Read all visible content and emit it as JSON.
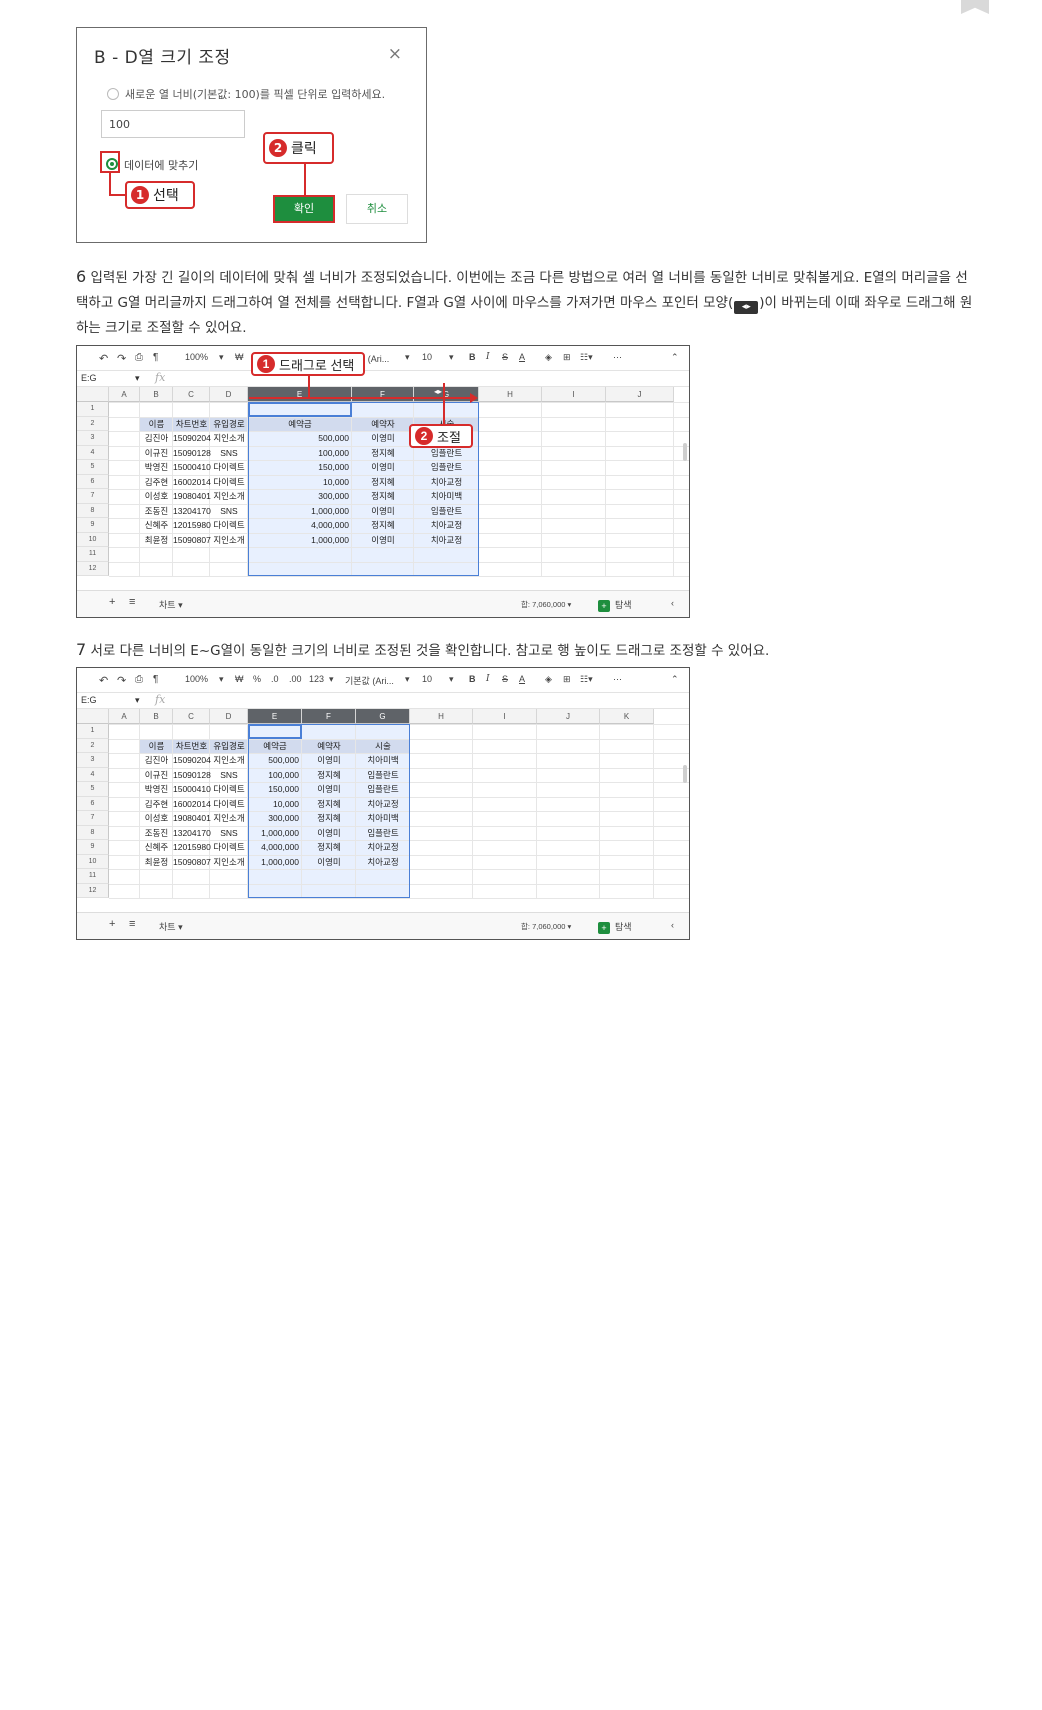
{
  "dialog": {
    "title": "B - D열 크기 조정",
    "close": "×",
    "option1": "새로운 열 너비(기본값: 100)를 픽셀 단위로 입력하세요.",
    "input_value": "100",
    "option2": "데이터에 맞추기",
    "ok": "확인",
    "cancel": "취소",
    "callout1": "선택",
    "callout2": "클릭"
  },
  "step6": {
    "num": "6",
    "text_a": " 입력된 가장 긴 길이의 데이터에 맞춰 셀 너비가 조정되었습니다. 이번에는 조금 다른 방법으로 여러 열 너비를 동일한 너비로 맞춰볼게요. E열의 머리글을 선택하고 G열 머리글까지 드래그하여 열 전체를 선택합니다. F열과 G열 사이에 마우스를 가져가면 마우스 포인터 모양(",
    "text_b": ")이 바뀌는데 이때 좌우로 드래그해 원하는 크기로 조절할 수 있어요.",
    "callout1": "드래그로 선택",
    "callout2": "조절"
  },
  "step7": {
    "num": "7",
    "text": " 서로 다른 너비의 E~G열이 동일한 크기의 너비로 조정된 것을 확인합니다. 참고로 행 높이도 드래그로 조정할 수 있어요."
  },
  "sheet": {
    "namebox": "E:G",
    "fx": "fx",
    "toolbar": {
      "zoom": "100%",
      "currency": "₩",
      "percent": "%",
      "dec0": ".0",
      "dec00": ".00",
      "fmt": "123",
      "font": "기본값 (Ari...",
      "font_short": "값 (Ari...",
      "size": "10",
      "bold": "B",
      "italic": "I",
      "strike": "S",
      "textcolor": "A"
    },
    "columns": [
      "A",
      "B",
      "C",
      "D",
      "E",
      "F",
      "G",
      "H",
      "I",
      "J",
      "K"
    ],
    "rows": [
      "1",
      "2",
      "3",
      "4",
      "5",
      "6",
      "7",
      "8",
      "9",
      "10",
      "11",
      "12"
    ],
    "headers": [
      "이름",
      "차트번호",
      "유입경로",
      "예약금",
      "예약자",
      "시술"
    ],
    "data": [
      [
        "김진아",
        "15090204",
        "지인소개",
        "500,000",
        "이영미",
        "치아미백"
      ],
      [
        "이규진",
        "15090128",
        "SNS",
        "100,000",
        "정지혜",
        "임플란트"
      ],
      [
        "박영진",
        "15000410",
        "다이렉트",
        "150,000",
        "이영미",
        "임플란트"
      ],
      [
        "김주현",
        "16002014",
        "다이렉트",
        "10,000",
        "정지혜",
        "치아교정"
      ],
      [
        "이성호",
        "19080401",
        "지인소개",
        "300,000",
        "정지혜",
        "치아미백"
      ],
      [
        "조동진",
        "13204170",
        "SNS",
        "1,000,000",
        "이영미",
        "임플란트"
      ],
      [
        "신혜주",
        "12015980",
        "다이렉트",
        "4,000,000",
        "정지혜",
        "치아교정"
      ],
      [
        "최윤정",
        "15090807",
        "지인소개",
        "1,000,000",
        "이영미",
        "치아교정"
      ]
    ],
    "sheet_tab": "차트",
    "sum": "합: 7,060,000",
    "explore": "탐색"
  }
}
